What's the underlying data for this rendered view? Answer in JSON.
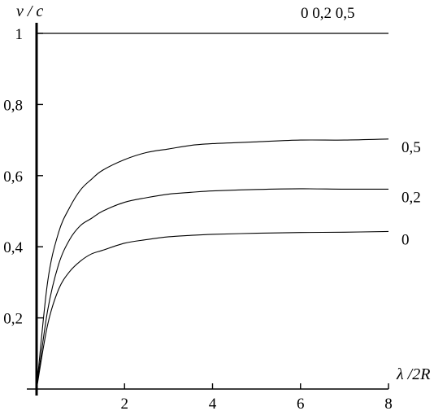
{
  "chart_data": {
    "type": "line",
    "xlabel": "λ /2R",
    "ylabel": "v / c",
    "xlim": [
      0,
      8
    ],
    "ylim": [
      0,
      1
    ],
    "x_ticks": [
      "2",
      "4",
      "6",
      "8"
    ],
    "x_tick_values": [
      2,
      4,
      6,
      8
    ],
    "y_ticks": [
      "0,2",
      "0,4",
      "0,6",
      "0,8",
      "1"
    ],
    "y_tick_values": [
      0.2,
      0.4,
      0.6,
      0.8,
      1.0
    ],
    "grid": false,
    "annotation_top": "0 0,2 0,5",
    "series": [
      {
        "name": "0,5",
        "x": [
          0,
          0.25,
          0.5,
          0.75,
          1,
          1.25,
          1.5,
          2,
          2.5,
          3,
          3.5,
          4,
          5,
          6,
          7,
          8
        ],
        "y": [
          0,
          0.3,
          0.44,
          0.51,
          0.56,
          0.59,
          0.615,
          0.645,
          0.665,
          0.675,
          0.685,
          0.69,
          0.695,
          0.7,
          0.7,
          0.703
        ]
      },
      {
        "name": "0,2",
        "x": [
          0,
          0.25,
          0.5,
          0.75,
          1,
          1.25,
          1.5,
          2,
          2.5,
          3,
          3.5,
          4,
          5,
          6,
          7,
          8
        ],
        "y": [
          0,
          0.22,
          0.35,
          0.42,
          0.46,
          0.48,
          0.5,
          0.525,
          0.538,
          0.548,
          0.553,
          0.557,
          0.561,
          0.563,
          0.562,
          0.562
        ]
      },
      {
        "name": "0",
        "x": [
          0,
          0.25,
          0.5,
          0.75,
          1,
          1.25,
          1.5,
          2,
          2.5,
          3,
          3.5,
          4,
          5,
          6,
          7,
          8
        ],
        "y": [
          0,
          0.18,
          0.28,
          0.33,
          0.36,
          0.38,
          0.39,
          0.41,
          0.42,
          0.428,
          0.432,
          0.435,
          0.438,
          0.44,
          0.441,
          0.443
        ]
      },
      {
        "name": "",
        "x": [
          0,
          8
        ],
        "y": [
          1,
          1
        ]
      }
    ]
  }
}
